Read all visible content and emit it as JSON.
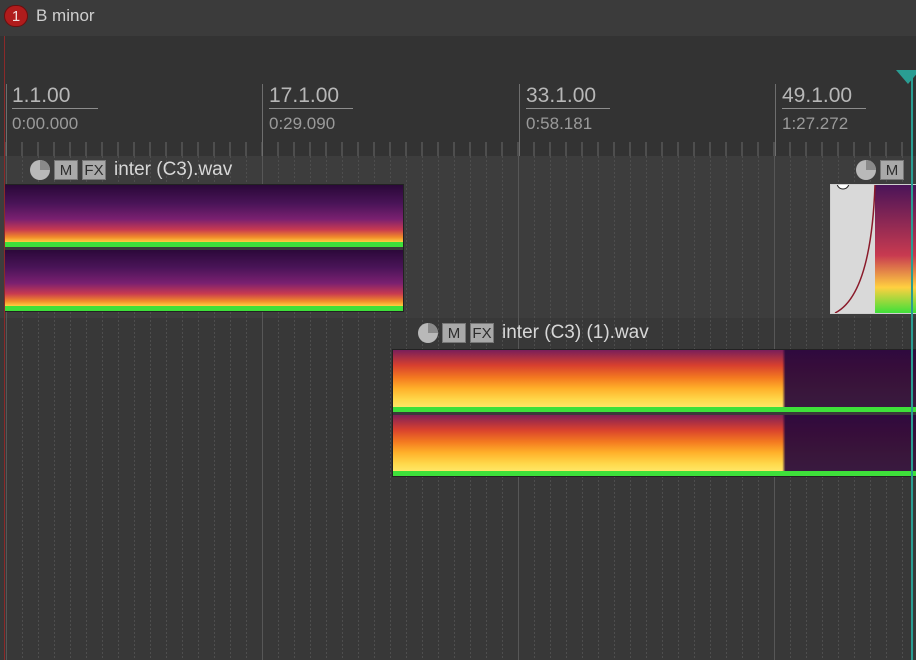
{
  "marker": {
    "number": "1",
    "name": "B minor"
  },
  "ruler": {
    "marks": [
      {
        "beat": "1.1.00",
        "time": "0:00.000"
      },
      {
        "beat": "17.1.00",
        "time": "0:29.090"
      },
      {
        "beat": "33.1.00",
        "time": "0:58.181"
      },
      {
        "beat": "49.1.00",
        "time": "1:27.272"
      }
    ]
  },
  "items": [
    {
      "title": "inter (C3).wav",
      "m_label": "M",
      "fx_label": "FX"
    },
    {
      "title": "inter (C3) (1).wav",
      "m_label": "M",
      "fx_label": "FX"
    },
    {
      "title": "",
      "m_label": "M",
      "fx_label": ""
    }
  ],
  "colors": {
    "marker": "#b01c1c",
    "cursor": "#2a9d93",
    "spectrum_low": "#2c0c3c",
    "spectrum_high": "#ffee55",
    "spectrum_floor": "#3ee03a"
  }
}
